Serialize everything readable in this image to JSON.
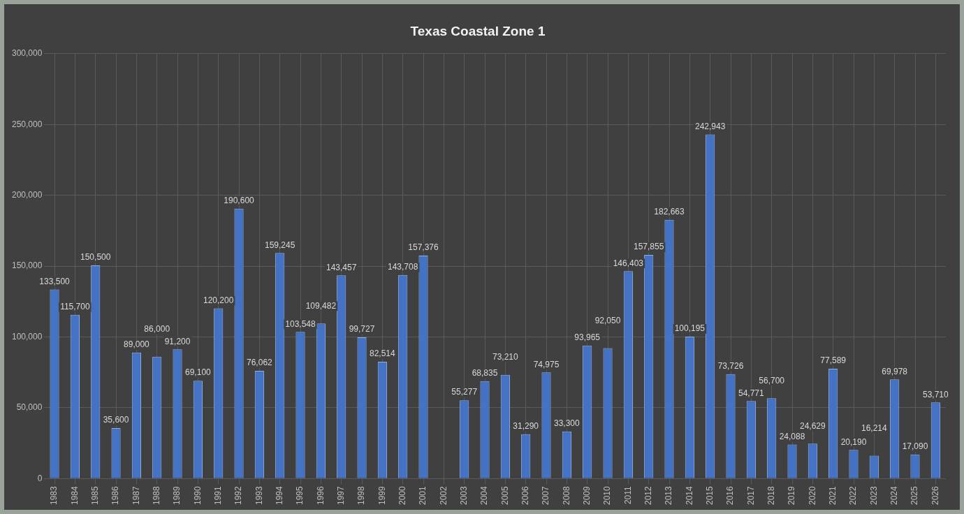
{
  "chart_data": {
    "type": "bar",
    "title": "Texas Coastal Zone 1",
    "categories": [
      "1983",
      "1984",
      "1985",
      "1986",
      "1987",
      "1988",
      "1989",
      "1990",
      "1991",
      "1992",
      "1993",
      "1994",
      "1995",
      "1996",
      "1997",
      "1998",
      "1999",
      "2000",
      "2001",
      "2002",
      "2003",
      "2004",
      "2005",
      "2006",
      "2007",
      "2008",
      "2009",
      "2010",
      "2011",
      "2012",
      "2013",
      "2014",
      "2015",
      "2016",
      "2017",
      "2018",
      "2019",
      "2020",
      "2021",
      "2022",
      "2023",
      "2024",
      "2025",
      "2026"
    ],
    "values": [
      133500,
      115700,
      150500,
      35600,
      89000,
      86000,
      91200,
      69100,
      120200,
      190600,
      76062,
      159245,
      103548,
      109482,
      143457,
      99727,
      82514,
      143708,
      157376,
      null,
      55277,
      68835,
      73210,
      31290,
      74975,
      33300,
      93965,
      92050,
      146403,
      157855,
      182663,
      100195,
      242943,
      73726,
      54771,
      56700,
      24088,
      24629,
      77589,
      20190,
      16214,
      69978,
      17090,
      53710
    ],
    "color": "#4472c4",
    "value_labels": [
      "133,500",
      "115,700",
      "150,500",
      "35,600",
      "89,000",
      "86,000",
      "91,200",
      "69,100",
      "120,200",
      "190,600",
      "76,062",
      "159,245",
      "103,548",
      "109,482",
      "143,457",
      "99,727",
      "82,514",
      "143,708",
      "157,376",
      null,
      "55,277",
      "68,835",
      "73,210",
      "31,290",
      "74,975",
      "33,300",
      "93,965",
      "92,050",
      "146,403",
      "157,855",
      "182,663",
      "100,195",
      "242,943",
      "73,726",
      "54,771",
      "56,700",
      "24,088",
      "24,629",
      "77,589",
      "20,190",
      "16,214",
      "69,978",
      "17,090",
      "53,710"
    ],
    "ylim": [
      0,
      300000
    ],
    "yticks": [
      0,
      {
        "value": 50000,
        "label": "50,000"
      },
      {
        "value": 100000,
        "label": "100,000"
      },
      {
        "value": 150000,
        "label": "150,000"
      },
      {
        "value": 200000,
        "label": "200,000"
      },
      {
        "value": 250000,
        "label": "250,000"
      },
      {
        "value": 300000,
        "label": "300,000"
      }
    ],
    "grid": true
  }
}
